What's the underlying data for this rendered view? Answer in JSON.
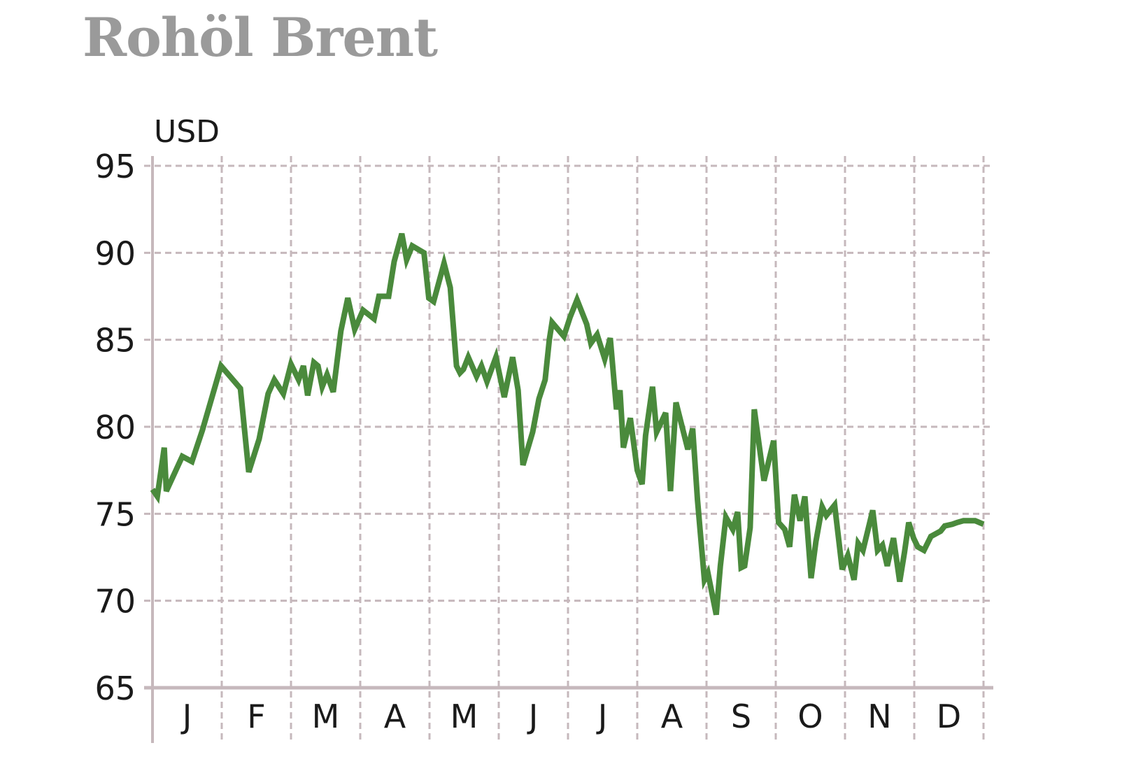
{
  "chart_data": {
    "type": "line",
    "title": "Rohöl Brent",
    "ylabel": "USD",
    "xlabel": "",
    "ylim": [
      65,
      95
    ],
    "yticks": [
      65,
      70,
      75,
      80,
      85,
      90,
      95
    ],
    "ytick_labels": [
      "65",
      "70",
      "75",
      "80",
      "85",
      "90",
      "95"
    ],
    "month_labels": [
      "J",
      "F",
      "M",
      "A",
      "M",
      "J",
      "J",
      "A",
      "S",
      "O",
      "N",
      "D"
    ],
    "grid": true,
    "colors": {
      "line": "#4a8a3c",
      "grid": "#c6b8bc",
      "axis": "#c6b8bc",
      "title": "#9a9a9a"
    },
    "series": [
      {
        "x": [
          0.0,
          0.07,
          0.17,
          0.2,
          0.43,
          0.57,
          0.72,
          0.99,
          1.27,
          1.39,
          1.54,
          1.67,
          1.76,
          1.89,
          2.0,
          2.11,
          2.18,
          2.24,
          2.33,
          2.39,
          2.45,
          2.52,
          2.61,
          2.72,
          2.82,
          2.92,
          3.04,
          3.2,
          3.27,
          3.41,
          3.49,
          3.6,
          3.67,
          3.75,
          3.92,
          3.99,
          4.06,
          4.21,
          4.3,
          4.39,
          4.44,
          4.49,
          4.56,
          4.68,
          4.75,
          4.83,
          4.96,
          5.08,
          5.2,
          5.28,
          5.35,
          5.49,
          5.58,
          5.67,
          5.73,
          5.77,
          5.94,
          6.03,
          6.13,
          6.27,
          6.33,
          6.42,
          6.53,
          6.61,
          6.7,
          6.75,
          6.8,
          6.9,
          7.0,
          7.07,
          7.12,
          7.22,
          7.28,
          7.41,
          7.48,
          7.56,
          7.73,
          7.8,
          7.87,
          7.97,
          8.02,
          8.14,
          8.2,
          8.28,
          8.38,
          8.45,
          8.5,
          8.55,
          8.63,
          8.69,
          8.83,
          8.97,
          9.04,
          9.13,
          9.2,
          9.27,
          9.35,
          9.42,
          9.51,
          9.58,
          9.67,
          9.73,
          9.85,
          9.96,
          10.04,
          10.13,
          10.19,
          10.26,
          10.4,
          10.47,
          10.54,
          10.61,
          10.7,
          10.79,
          10.86,
          10.92,
          10.99,
          11.05,
          11.14,
          11.24,
          11.38,
          11.44,
          11.55,
          11.62,
          11.71,
          11.88,
          12.0
        ],
        "values": [
          76.4,
          76.0,
          78.8,
          76.3,
          78.3,
          78.0,
          79.8,
          83.5,
          82.2,
          77.4,
          79.3,
          81.9,
          82.7,
          81.9,
          83.6,
          82.7,
          83.5,
          81.8,
          83.7,
          83.5,
          82.3,
          83.0,
          82.0,
          85.5,
          87.4,
          85.6,
          86.7,
          86.2,
          87.5,
          87.5,
          89.5,
          91.1,
          89.6,
          90.4,
          90.0,
          87.4,
          87.2,
          89.4,
          88.0,
          83.5,
          83.1,
          83.3,
          84.0,
          82.9,
          83.5,
          82.6,
          84.0,
          81.7,
          84.0,
          82.1,
          77.8,
          79.7,
          81.6,
          82.7,
          85.0,
          86.0,
          85.2,
          86.3,
          87.3,
          85.9,
          84.8,
          85.3,
          83.9,
          85.1,
          81.0,
          82.1,
          78.8,
          80.5,
          77.5,
          76.7,
          79.5,
          82.3,
          79.7,
          80.8,
          76.3,
          81.4,
          78.7,
          79.9,
          75.8,
          71.2,
          71.6,
          69.2,
          72.0,
          74.8,
          74.1,
          75.1,
          71.9,
          72.0,
          74.2,
          81.0,
          76.9,
          79.2,
          74.5,
          74.1,
          73.1,
          76.1,
          74.6,
          76.0,
          71.3,
          73.4,
          75.4,
          74.9,
          75.5,
          71.8,
          72.6,
          71.2,
          73.3,
          72.9,
          75.2,
          72.9,
          73.2,
          72.0,
          73.6,
          71.1,
          72.8,
          74.5,
          73.6,
          73.1,
          72.9,
          73.7,
          74.0,
          74.3,
          74.4,
          74.5,
          74.6,
          74.6,
          74.4
        ]
      }
    ]
  }
}
